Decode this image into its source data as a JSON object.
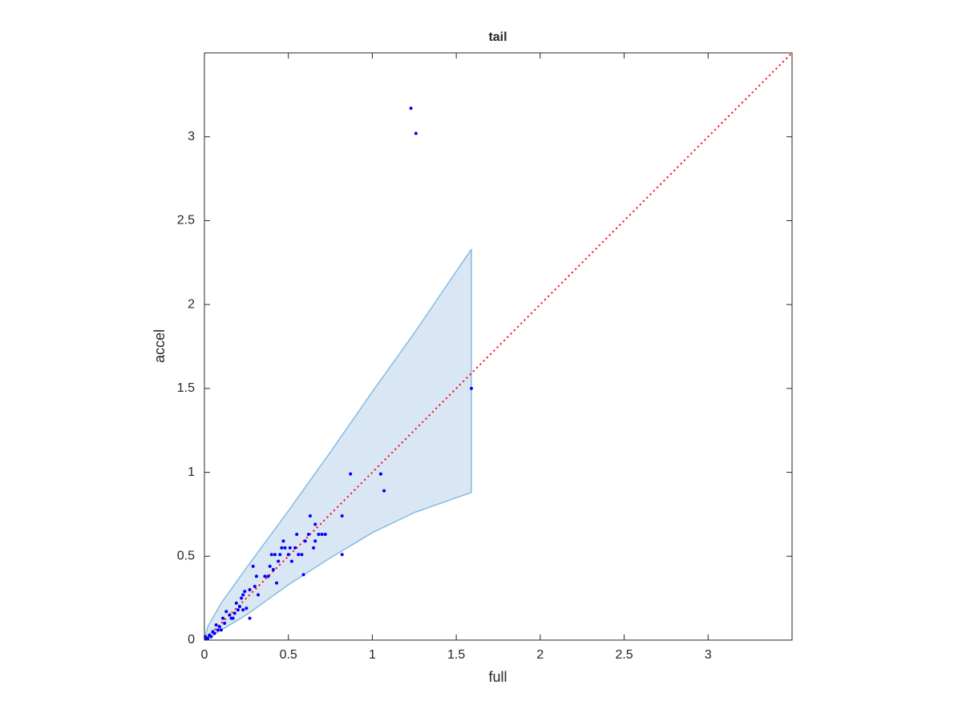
{
  "chart_data": {
    "type": "scatter",
    "title": "tail",
    "x_label": "full",
    "y_label": "accel",
    "xlim": [
      0,
      3.5
    ],
    "ylim": [
      0,
      3.5
    ],
    "xticks": [
      0,
      0.5,
      1,
      1.5,
      2,
      2.5,
      3
    ],
    "yticks": [
      0,
      0.5,
      1,
      1.5,
      2,
      2.5,
      3
    ],
    "grid": false,
    "band": {
      "color": "#86bbe0",
      "fill": "#d9e7f4",
      "x": [
        0,
        0.02,
        0.1,
        0.25,
        0.5,
        0.75,
        1,
        1.25,
        1.59
      ],
      "upper": [
        0,
        0.08,
        0.22,
        0.43,
        0.77,
        1.12,
        1.48,
        1.83,
        2.33
      ],
      "lower": [
        0,
        0.01,
        0.06,
        0.15,
        0.33,
        0.49,
        0.64,
        0.76,
        0.88
      ]
    },
    "reference_line": {
      "color": "#ff0000",
      "x": [
        0,
        3.5
      ],
      "y": [
        0,
        3.5
      ]
    },
    "points": {
      "color": "#0000ff",
      "x": [
        1.23,
        1.26,
        1.59,
        0.87,
        1.05,
        1.07,
        0.82,
        0.82,
        0.63,
        0.66,
        0.68,
        0.7,
        0.72,
        0.65,
        0.6,
        0.62,
        0.55,
        0.58,
        0.56,
        0.54,
        0.52,
        0.5,
        0.48,
        0.47,
        0.46,
        0.45,
        0.44,
        0.42,
        0.4,
        0.41,
        0.39,
        0.38,
        0.43,
        0.59,
        0.36,
        0.32,
        0.31,
        0.29,
        0.3,
        0.27,
        0.27,
        0.24,
        0.23,
        0.22,
        0.21,
        0.2,
        0.19,
        0.18,
        0.17,
        0.16,
        0.15,
        0.13,
        0.12,
        0.11,
        0.1,
        0.09,
        0.08,
        0.07,
        0.06,
        0.05,
        0.04,
        0.03,
        0.02,
        0.01,
        0.005,
        0.51,
        0.25,
        0.23,
        0.66
      ],
      "y": [
        3.17,
        3.02,
        1.5,
        0.99,
        0.99,
        0.89,
        0.74,
        0.51,
        0.74,
        0.69,
        0.63,
        0.63,
        0.63,
        0.55,
        0.59,
        0.63,
        0.63,
        0.51,
        0.51,
        0.55,
        0.47,
        0.51,
        0.55,
        0.59,
        0.55,
        0.51,
        0.47,
        0.51,
        0.51,
        0.42,
        0.44,
        0.38,
        0.34,
        0.39,
        0.38,
        0.27,
        0.38,
        0.44,
        0.32,
        0.3,
        0.13,
        0.29,
        0.27,
        0.25,
        0.2,
        0.18,
        0.22,
        0.16,
        0.13,
        0.13,
        0.15,
        0.17,
        0.1,
        0.13,
        0.06,
        0.08,
        0.06,
        0.09,
        0.04,
        0.05,
        0.02,
        0.03,
        0.01,
        0.01,
        0.02,
        0.55,
        0.19,
        0.18,
        0.59
      ]
    }
  }
}
